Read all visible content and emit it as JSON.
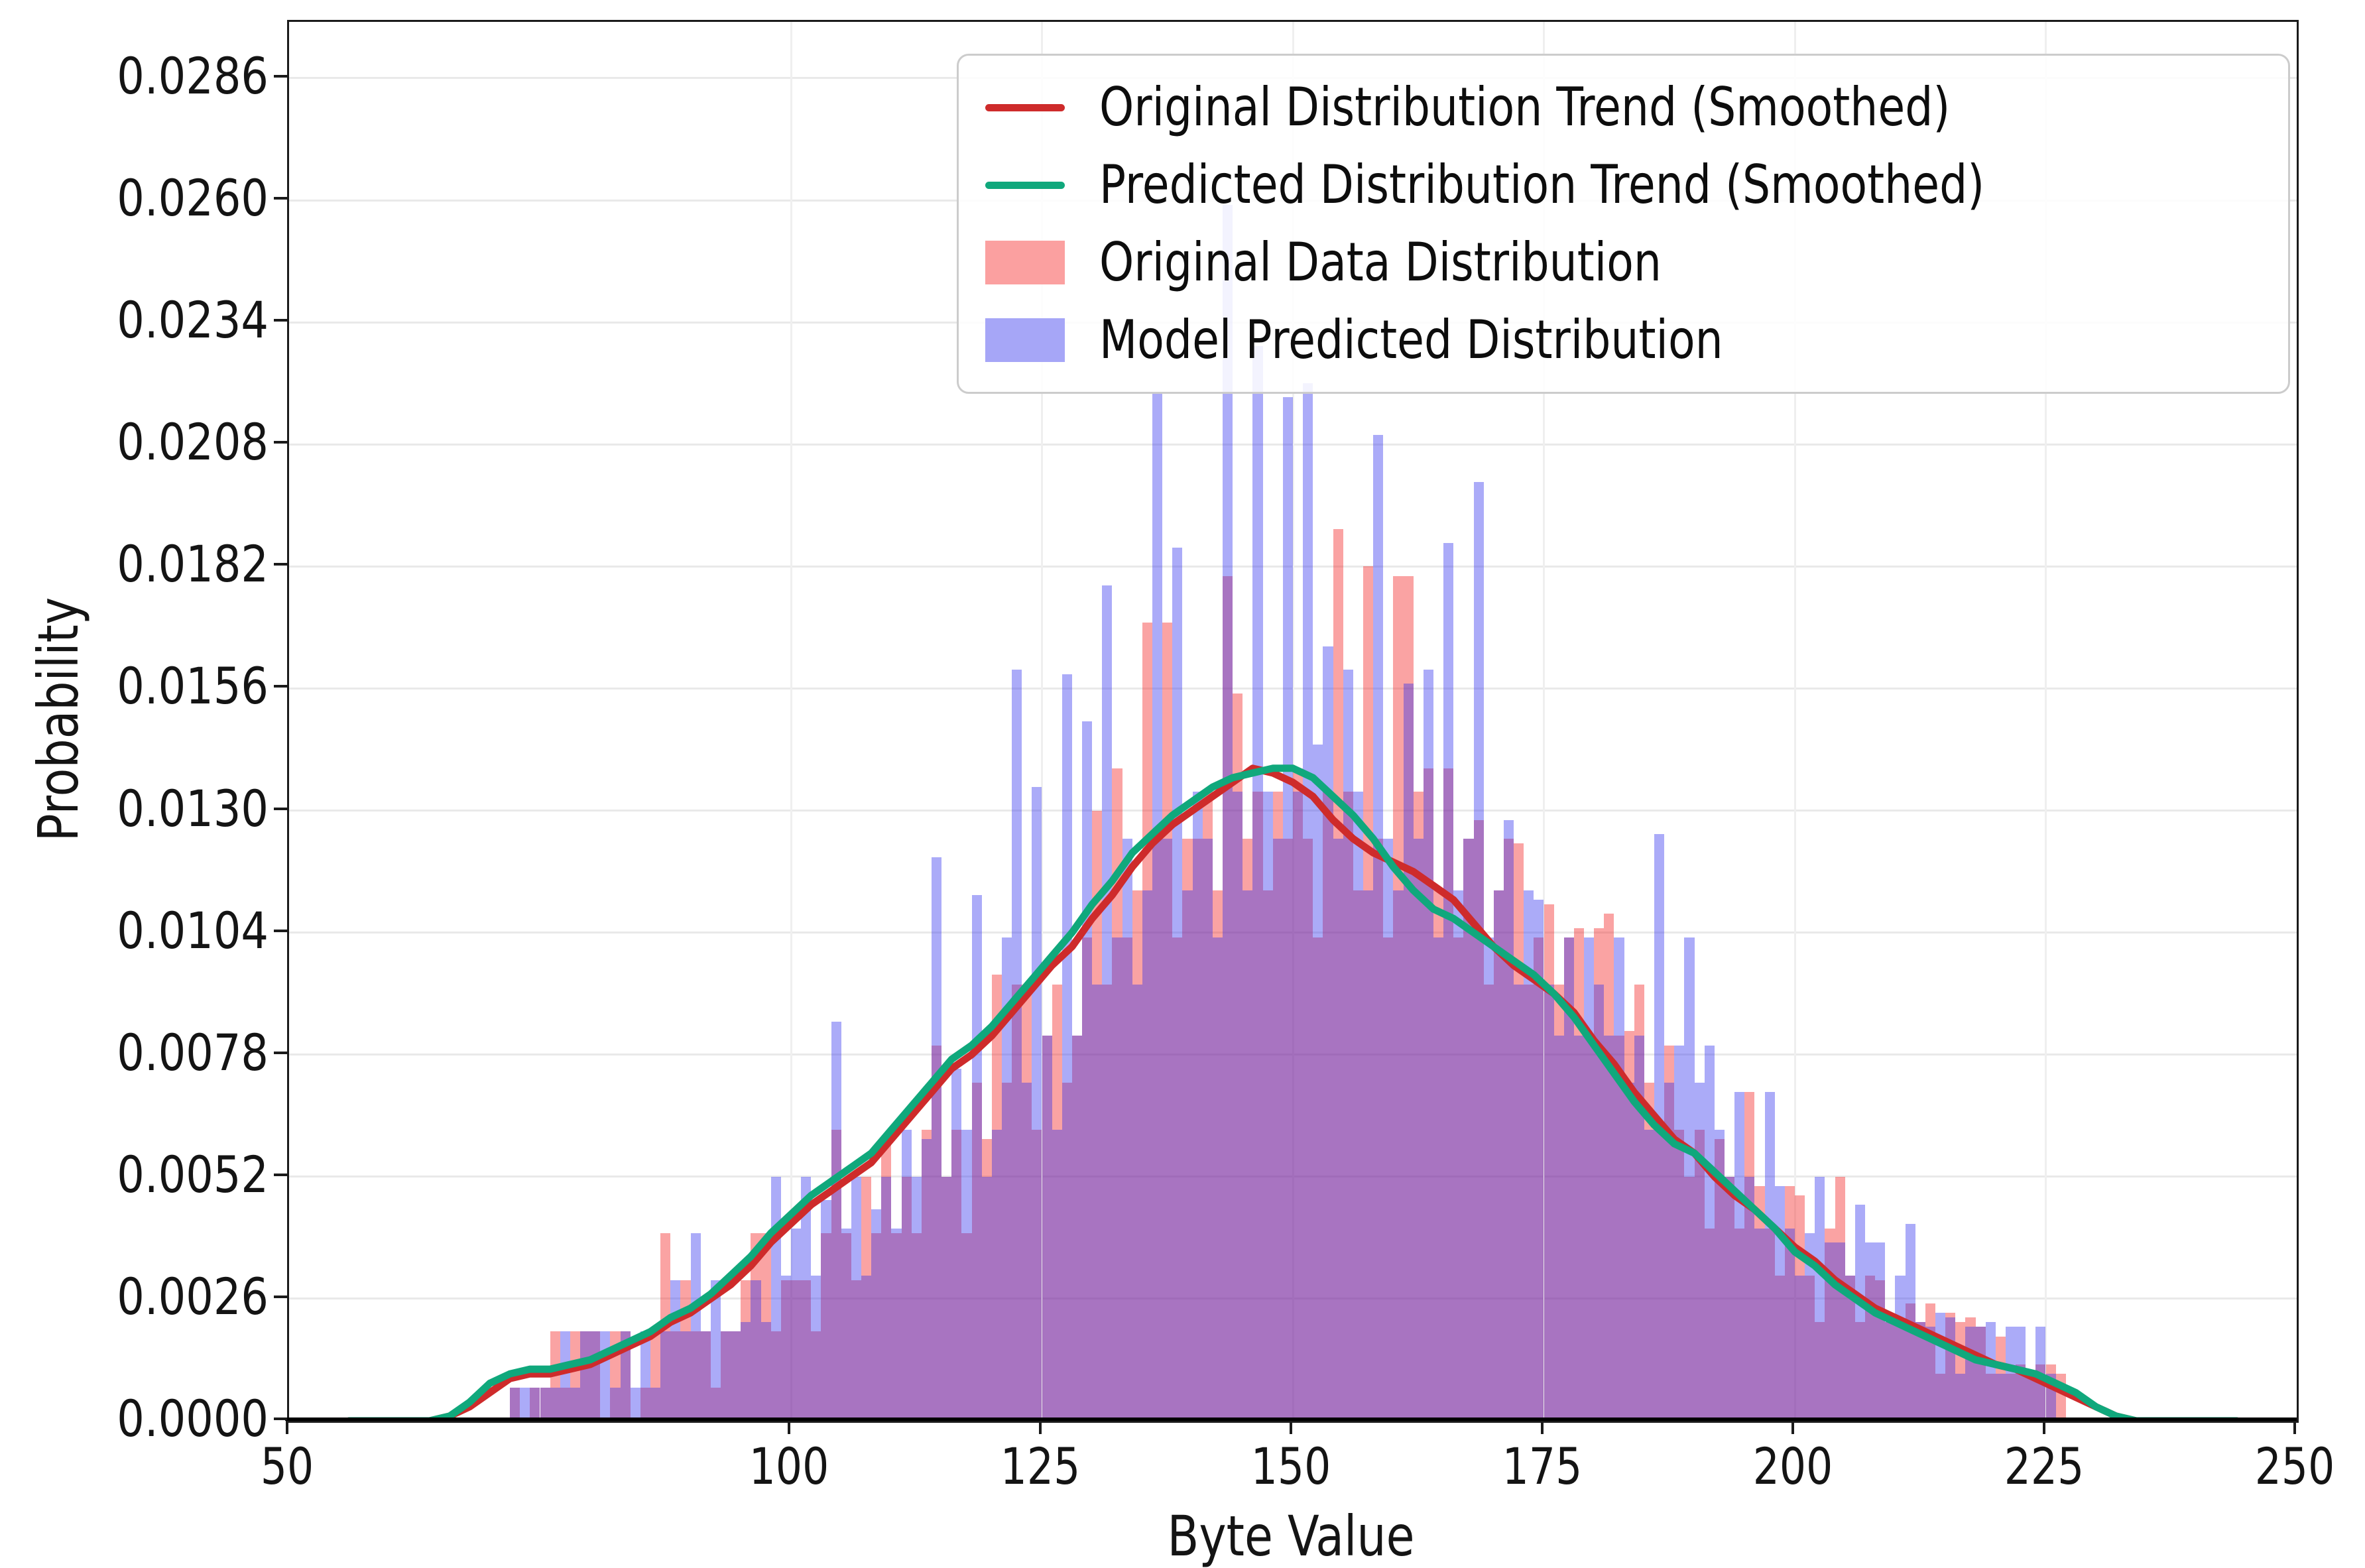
{
  "legend": {
    "items": [
      {
        "label": "Original Distribution Trend (Smoothed)",
        "swatch": "line",
        "color": "#ce2b2b"
      },
      {
        "label": "Predicted Distribution Trend (Smoothed)",
        "swatch": "line",
        "color": "#10a87c"
      },
      {
        "label": "Original Data Distribution",
        "swatch": "patch",
        "color": "#fba0a0"
      },
      {
        "label": "Model Predicted Distribution",
        "swatch": "patch",
        "color": "#a6a6f7"
      }
    ]
  },
  "chart_data": {
    "type": "histogram+line",
    "title": "",
    "xlabel": "Byte Value",
    "ylabel": "Probability",
    "x_range": [
      50,
      250
    ],
    "y_axis_max": 0.0298,
    "x_ticks": [
      50,
      100,
      125,
      150,
      175,
      200,
      225,
      250
    ],
    "y_ticks": [
      "0.0000",
      "0.0026",
      "0.0052",
      "0.0078",
      "0.0104",
      "0.0130",
      "0.0156",
      "0.0182",
      "0.0208",
      "0.0234",
      "0.0260",
      "0.0286"
    ],
    "grid": true,
    "legend_position": "upper right",
    "value_unit": 0.0001,
    "histogram": {
      "bin_start": 72,
      "bin_width": 1,
      "series": [
        {
          "name": "Original Data Distribution",
          "color": "rgba(243,35,35,0.42)",
          "values_1e4": [
            7,
            0,
            7,
            7,
            19,
            7,
            19,
            19,
            19,
            0,
            19,
            19,
            0,
            7,
            19,
            40,
            19,
            30,
            19,
            19,
            7,
            19,
            19,
            30,
            40,
            40,
            19,
            30,
            30,
            30,
            19,
            40,
            62,
            40,
            30,
            52,
            40,
            59,
            40,
            52,
            40,
            62,
            80,
            52,
            62,
            40,
            72,
            60,
            95,
            72,
            93,
            93,
            62,
            82,
            93,
            72,
            82,
            103,
            130,
            93,
            139,
            103,
            113,
            170,
            124,
            170,
            103,
            124,
            124,
            134,
            113,
            180,
            155,
            124,
            134,
            113,
            134,
            124,
            139,
            124,
            103,
            134,
            190,
            134,
            113,
            182,
            124,
            103,
            180,
            180,
            134,
            139,
            113,
            139,
            103,
            124,
            128,
            93,
            113,
            124,
            123,
            93,
            103,
            110,
            93,
            103,
            105,
            82,
            105,
            108,
            82,
            83,
            93,
            72,
            62,
            80,
            62,
            52,
            62,
            41,
            60,
            52,
            41,
            70,
            50,
            41,
            31,
            50,
            48,
            31,
            21,
            41,
            52,
            31,
            21,
            31,
            30,
            21,
            21,
            25,
            21,
            25,
            10,
            23,
            21,
            22,
            20,
            10,
            18,
            10,
            12,
            10,
            12,
            12,
            10
          ]
        },
        {
          "name": "Model Predicted Distribution",
          "color": "rgba(45,45,238,0.40)",
          "values_1e4": [
            7,
            7,
            7,
            7,
            7,
            19,
            7,
            19,
            19,
            19,
            7,
            19,
            7,
            19,
            7,
            19,
            30,
            19,
            40,
            19,
            30,
            19,
            19,
            21,
            30,
            21,
            52,
            31,
            41,
            52,
            31,
            47,
            85,
            41,
            52,
            31,
            45,
            52,
            41,
            62,
            52,
            60,
            120,
            52,
            75,
            62,
            112,
            52,
            62,
            103,
            160,
            72,
            135,
            82,
            62,
            159,
            82,
            149,
            93,
            178,
            103,
            124,
            93,
            113,
            219,
            124,
            186,
            113,
            134,
            124,
            103,
            259,
            134,
            113,
            229,
            134,
            124,
            218,
            134,
            221,
            144,
            165,
            124,
            160,
            134,
            113,
            210,
            124,
            113,
            157,
            124,
            160,
            103,
            187,
            113,
            124,
            200,
            103,
            113,
            128,
            93,
            113,
            111,
            93,
            82,
            103,
            82,
            103,
            93,
            82,
            103,
            72,
            82,
            62,
            125,
            72,
            80,
            103,
            72,
            80,
            62,
            52,
            70,
            52,
            41,
            70,
            50,
            41,
            31,
            40,
            52,
            38,
            38,
            31,
            46,
            38,
            38,
            21,
            31,
            42,
            21,
            20,
            23,
            22,
            10,
            20,
            20,
            21,
            10,
            20,
            20,
            10,
            20,
            10,
            0
          ]
        }
      ]
    },
    "lines": {
      "x_start": 56,
      "x_step": 2,
      "series": [
        {
          "name": "Original Distribution Trend (Smoothed)",
          "color": "#ce2b2b",
          "values_1e4": [
            0,
            0,
            0,
            0,
            0,
            1,
            3,
            6,
            9,
            10,
            10,
            11,
            12,
            14,
            16,
            18,
            21,
            23,
            26,
            29,
            33,
            38,
            42,
            46,
            49,
            52,
            55,
            60,
            65,
            70,
            75,
            78,
            82,
            87,
            92,
            97,
            101,
            107,
            112,
            118,
            123,
            127,
            130,
            133,
            136,
            139,
            138,
            136,
            133,
            128,
            124,
            121,
            119,
            117,
            114,
            111,
            106,
            101,
            97,
            94,
            91,
            87,
            81,
            76,
            70,
            65,
            60,
            57,
            52,
            48,
            45,
            41,
            37,
            34,
            30,
            27,
            24,
            22,
            20,
            18,
            16,
            14,
            12,
            11,
            9,
            7,
            5,
            3,
            1,
            0,
            0,
            0,
            0,
            0,
            0
          ]
        },
        {
          "name": "Predicted Distribution Trend (Smoothed)",
          "color": "#10a87c",
          "values_1e4": [
            0,
            0,
            0,
            0,
            0,
            1,
            4,
            8,
            10,
            11,
            11,
            12,
            13,
            15,
            17,
            19,
            22,
            24,
            27,
            31,
            35,
            40,
            44,
            48,
            51,
            54,
            57,
            62,
            67,
            72,
            77,
            80,
            84,
            89,
            94,
            99,
            104,
            110,
            115,
            121,
            125,
            129,
            132,
            135,
            137,
            138,
            139,
            139,
            137,
            133,
            129,
            124,
            118,
            113,
            109,
            107,
            104,
            101,
            98,
            95,
            91,
            86,
            80,
            74,
            68,
            63,
            59,
            57,
            53,
            49,
            45,
            41,
            36,
            33,
            29,
            26,
            23,
            21,
            19,
            17,
            15,
            13,
            12,
            11,
            10,
            8,
            6,
            3,
            1,
            0,
            0,
            0,
            0,
            0,
            0
          ]
        }
      ]
    }
  }
}
